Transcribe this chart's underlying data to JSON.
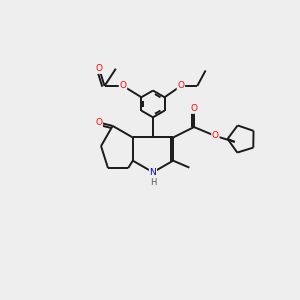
{
  "background_color": "#eeeeee",
  "bond_color": "#1a1a1a",
  "atom_colors": {
    "O": "#ff0000",
    "N": "#0000cd",
    "C": "#1a1a1a"
  },
  "figsize": [
    3.0,
    3.0
  ],
  "dpi": 100,
  "lw": 1.4,
  "fs": 6.5
}
